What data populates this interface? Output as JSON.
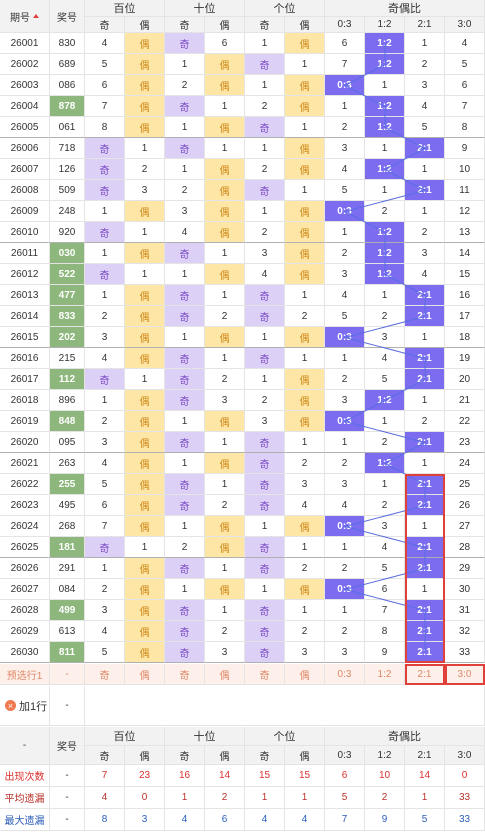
{
  "header": {
    "issue": "期号",
    "number": "奖号",
    "groups": [
      "百位",
      "十位",
      "个位",
      "奇偶比"
    ],
    "sub": [
      "奇",
      "偶",
      "奇",
      "偶",
      "奇",
      "偶",
      "0:3",
      "1:2",
      "2:1",
      "3:0"
    ]
  },
  "rows": [
    {
      "issue": "26001",
      "number": "830",
      "cells": [
        4,
        "偶",
        "奇",
        6,
        1,
        "偶",
        6,
        "1:2",
        1,
        4
      ]
    },
    {
      "issue": "26002",
      "number": "689",
      "cells": [
        5,
        "偶",
        1,
        "偶",
        "奇",
        1,
        7,
        "1:2",
        2,
        5
      ]
    },
    {
      "issue": "26003",
      "number": "086",
      "cells": [
        6,
        "偶",
        2,
        "偶",
        1,
        "偶",
        "0:3",
        1,
        3,
        6
      ]
    },
    {
      "issue": "26004",
      "number": "878",
      "highlight": true,
      "cells": [
        7,
        "偶",
        "奇",
        1,
        2,
        "偶",
        1,
        "1:2",
        4,
        7
      ]
    },
    {
      "issue": "26005",
      "number": "061",
      "cells": [
        8,
        "偶",
        1,
        "偶",
        "奇",
        1,
        2,
        "1:2",
        5,
        8
      ]
    },
    {
      "issue": "26006",
      "number": "718",
      "cells": [
        "奇",
        1,
        "奇",
        1,
        1,
        "偶",
        3,
        1,
        "2:1",
        9
      ]
    },
    {
      "issue": "26007",
      "number": "126",
      "cells": [
        "奇",
        2,
        1,
        "偶",
        2,
        "偶",
        4,
        "1:2",
        1,
        10
      ]
    },
    {
      "issue": "26008",
      "number": "509",
      "cells": [
        "奇",
        3,
        2,
        "偶",
        "奇",
        1,
        5,
        1,
        "2:1",
        11
      ]
    },
    {
      "issue": "26009",
      "number": "248",
      "cells": [
        1,
        "偶",
        3,
        "偶",
        1,
        "偶",
        "0:3",
        2,
        1,
        12
      ]
    },
    {
      "issue": "26010",
      "number": "920",
      "cells": [
        "奇",
        1,
        4,
        "偶",
        2,
        "偶",
        1,
        "1:2",
        2,
        13
      ]
    },
    {
      "issue": "26011",
      "number": "030",
      "highlight": true,
      "cells": [
        1,
        "偶",
        "奇",
        1,
        3,
        "偶",
        2,
        "1:2",
        3,
        14
      ]
    },
    {
      "issue": "26012",
      "number": "522",
      "highlight": true,
      "cells": [
        "奇",
        1,
        1,
        "偶",
        4,
        "偶",
        3,
        "1:2",
        4,
        15
      ]
    },
    {
      "issue": "26013",
      "number": "477",
      "highlight": true,
      "cells": [
        1,
        "偶",
        "奇",
        1,
        "奇",
        1,
        4,
        1,
        "2:1",
        16
      ]
    },
    {
      "issue": "26014",
      "number": "833",
      "highlight": true,
      "cells": [
        2,
        "偶",
        "奇",
        2,
        "奇",
        2,
        5,
        2,
        "2:1",
        17
      ]
    },
    {
      "issue": "26015",
      "number": "202",
      "highlight": true,
      "cells": [
        3,
        "偶",
        1,
        "偶",
        1,
        "偶",
        "0:3",
        3,
        1,
        18
      ]
    },
    {
      "issue": "26016",
      "number": "215",
      "cells": [
        4,
        "偶",
        "奇",
        1,
        "奇",
        1,
        1,
        4,
        "2:1",
        19
      ]
    },
    {
      "issue": "26017",
      "number": "112",
      "highlight": true,
      "cells": [
        "奇",
        1,
        "奇",
        2,
        1,
        "偶",
        2,
        5,
        "2:1",
        20
      ]
    },
    {
      "issue": "26018",
      "number": "896",
      "cells": [
        1,
        "偶",
        "奇",
        3,
        2,
        "偶",
        3,
        "1:2",
        1,
        21
      ]
    },
    {
      "issue": "26019",
      "number": "848",
      "highlight": true,
      "cells": [
        2,
        "偶",
        1,
        "偶",
        3,
        "偶",
        "0:3",
        1,
        2,
        22
      ]
    },
    {
      "issue": "26020",
      "number": "095",
      "cells": [
        3,
        "偶",
        "奇",
        1,
        "奇",
        1,
        1,
        2,
        "2:1",
        23
      ]
    },
    {
      "issue": "26021",
      "number": "263",
      "cells": [
        4,
        "偶",
        1,
        "偶",
        "奇",
        2,
        2,
        "1:2",
        1,
        24
      ]
    },
    {
      "issue": "26022",
      "number": "255",
      "highlight": true,
      "cells": [
        5,
        "偶",
        "奇",
        1,
        "奇",
        3,
        3,
        1,
        "2:1",
        25
      ]
    },
    {
      "issue": "26023",
      "number": "495",
      "cells": [
        6,
        "偶",
        "奇",
        2,
        "奇",
        4,
        4,
        2,
        "2:1",
        26
      ]
    },
    {
      "issue": "26024",
      "number": "268",
      "cells": [
        7,
        "偶",
        1,
        "偶",
        1,
        "偶",
        "0:3",
        3,
        1,
        27
      ]
    },
    {
      "issue": "26025",
      "number": "181",
      "highlight": true,
      "cells": [
        "奇",
        1,
        2,
        "偶",
        "奇",
        1,
        1,
        4,
        "2:1",
        28
      ]
    },
    {
      "issue": "26026",
      "number": "291",
      "cells": [
        1,
        "偶",
        "奇",
        1,
        "奇",
        2,
        2,
        5,
        "2:1",
        29
      ]
    },
    {
      "issue": "26027",
      "number": "084",
      "cells": [
        2,
        "偶",
        1,
        "偶",
        1,
        "偶",
        "0:3",
        6,
        1,
        30
      ]
    },
    {
      "issue": "26028",
      "number": "499",
      "highlight": true,
      "cells": [
        3,
        "偶",
        "奇",
        1,
        "奇",
        1,
        1,
        7,
        "2:1",
        31
      ]
    },
    {
      "issue": "26029",
      "number": "613",
      "cells": [
        4,
        "偶",
        "奇",
        2,
        "奇",
        2,
        2,
        8,
        "2:1",
        32
      ]
    },
    {
      "issue": "26030",
      "number": "811",
      "highlight": true,
      "cells": [
        5,
        "偶",
        "奇",
        3,
        "奇",
        3,
        3,
        9,
        "2:1",
        33
      ]
    }
  ],
  "preselect": {
    "label": "预选行1",
    "number": "-",
    "cells": [
      "奇",
      "偶",
      "奇",
      "偶",
      "奇",
      "偶",
      "0:3",
      "1:2",
      "2:1",
      "3:0"
    ]
  },
  "add_row": {
    "label": "加1行",
    "number": "-"
  },
  "footer": {
    "header": {
      "issue": "-",
      "number": "奖号",
      "groups": [
        "百位",
        "十位",
        "个位",
        "奇偶比"
      ],
      "sub": [
        "奇",
        "偶",
        "奇",
        "偶",
        "奇",
        "偶",
        "0:3",
        "1:2",
        "2:1",
        "3:0"
      ]
    },
    "stats": [
      {
        "label": "出现次数",
        "number": "-",
        "color": "#d9302c",
        "values": [
          7,
          23,
          16,
          14,
          15,
          15,
          6,
          10,
          14,
          0
        ]
      },
      {
        "label": "平均遗漏",
        "number": "-",
        "color": "#b8322a",
        "values": [
          4,
          0,
          1,
          2,
          1,
          1,
          5,
          2,
          1,
          33
        ]
      },
      {
        "label": "最大遗漏",
        "number": "-",
        "color": "#2a5db8",
        "values": [
          8,
          3,
          4,
          6,
          4,
          4,
          7,
          9,
          5,
          33
        ]
      }
    ]
  }
}
